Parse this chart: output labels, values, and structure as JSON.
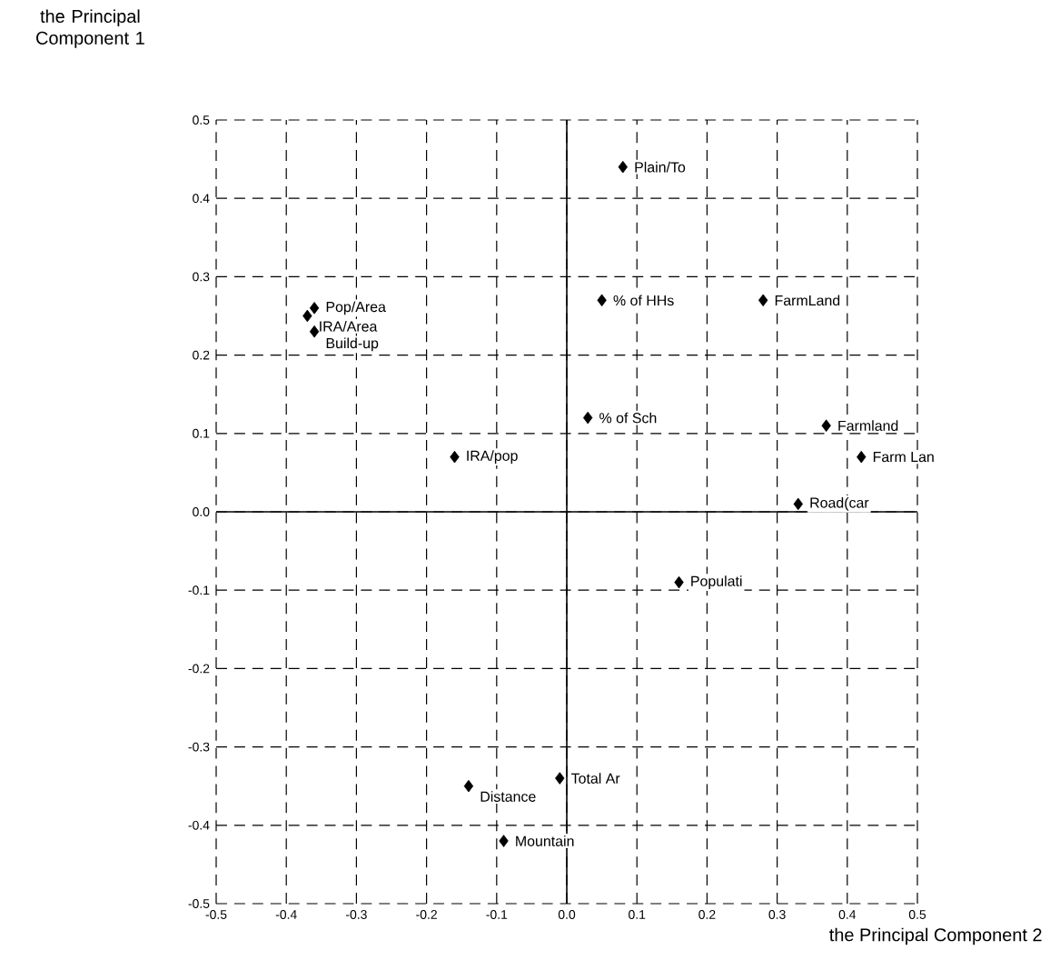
{
  "chart_data": {
    "type": "scatter",
    "xlabel": "the Principal Component  2",
    "ylabel": "the Principal Component  1",
    "series": [
      {
        "color": "#000000",
        "x": [
          0.08,
          -0.36,
          -0.37,
          -0.36,
          0.05,
          0.28,
          0.03,
          0.37,
          0.42,
          -0.16,
          0.33,
          0.16,
          -0.14,
          -0.01,
          -0.09
        ],
        "values": [
          0.44,
          0.26,
          0.25,
          0.23,
          0.27,
          0.27,
          0.12,
          0.11,
          0.07,
          0.07,
          0.01,
          -0.09,
          -0.35,
          -0.34,
          -0.42
        ]
      }
    ],
    "annotations": [
      {
        "text": "Plain/To",
        "x": 0.08,
        "y": 0.44
      },
      {
        "text": "Pop/Area",
        "x": -0.36,
        "y": 0.26
      },
      {
        "text": "IRA/Area",
        "x": -0.37,
        "y": 0.25
      },
      {
        "text": "Build-up",
        "x": -0.36,
        "y": 0.23
      },
      {
        "text": "% of HHs",
        "x": 0.05,
        "y": 0.27
      },
      {
        "text": "FarmLand",
        "x": 0.28,
        "y": 0.27
      },
      {
        "text": "% of Sch",
        "x": 0.03,
        "y": 0.12
      },
      {
        "text": "Farmland",
        "x": 0.37,
        "y": 0.11
      },
      {
        "text": "Farm Lan",
        "x": 0.42,
        "y": 0.07
      },
      {
        "text": "IRA/pop",
        "x": -0.16,
        "y": 0.07
      },
      {
        "text": "Road(car",
        "x": 0.33,
        "y": 0.01
      },
      {
        "text": "Populati",
        "x": 0.16,
        "y": -0.09
      },
      {
        "text": "Distance",
        "x": -0.14,
        "y": -0.35
      },
      {
        "text": "Total Ar",
        "x": -0.01,
        "y": -0.34
      },
      {
        "text": "Mountain",
        "x": -0.09,
        "y": -0.42
      }
    ],
    "xlim": [
      -0.5,
      0.5
    ],
    "ylim": [
      -0.5,
      0.5
    ],
    "xticks": [
      -0.5,
      -0.4,
      -0.3,
      -0.2,
      -0.1,
      {
        "value": 0,
        "label": "0.0"
      },
      0.1,
      0.2,
      0.3,
      0.4,
      0.5
    ],
    "yticks": [
      -0.5,
      -0.4,
      -0.3,
      -0.2,
      -0.1,
      {
        "value": 0,
        "label": "0.0"
      },
      0.1,
      0.2,
      0.3,
      0.4,
      0.5
    ],
    "grid": true,
    "marker": "diamond"
  }
}
